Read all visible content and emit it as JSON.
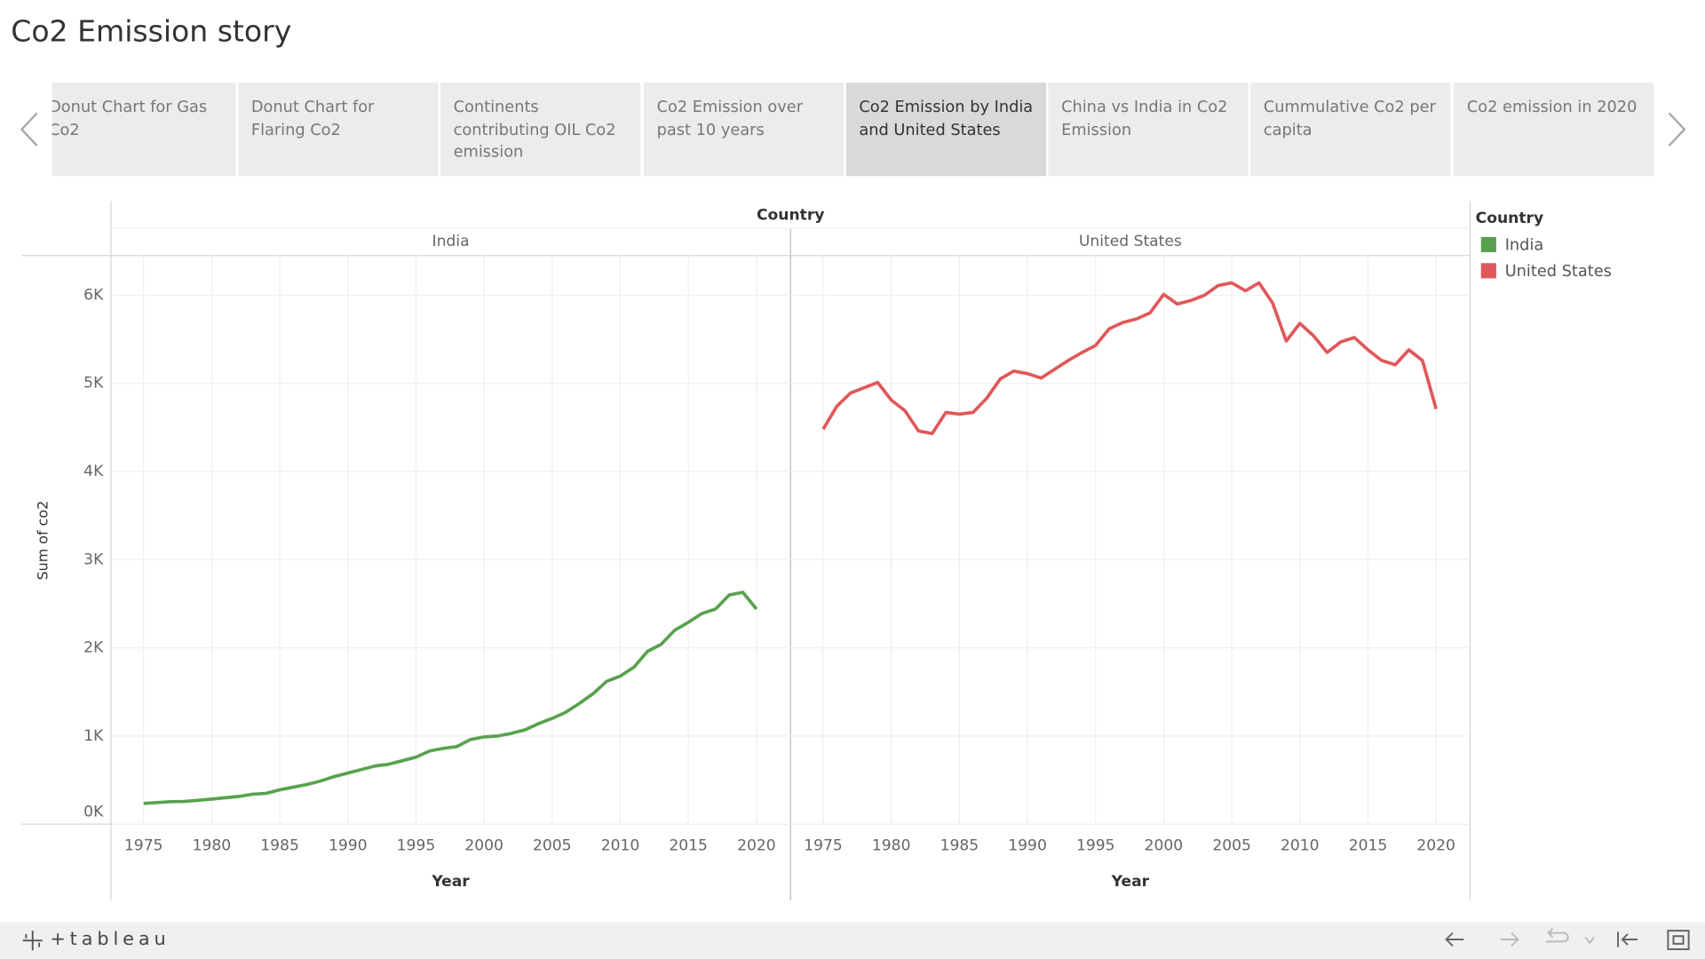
{
  "header": {
    "title": "Co2 Emission story"
  },
  "tabs": [
    "Donut Chart for Gas Co2",
    "Donut Chart for Flaring Co2",
    "Continents contributing OIL Co2 emission",
    "Co2 Emission over past 10 years",
    "Co2 Emission by India and United States",
    "China vs India in Co2 Emission",
    "Cummulative Co2 per capita",
    "Co2 emission in 2020"
  ],
  "chart_data": {
    "type": "line",
    "column_header": "Country",
    "legend_title": "Country",
    "y_label": "Sum of co2",
    "x_label": "Year",
    "x": [
      1975,
      1976,
      1977,
      1978,
      1979,
      1980,
      1981,
      1982,
      1983,
      1984,
      1985,
      1986,
      1987,
      1988,
      1989,
      1990,
      1991,
      1992,
      1993,
      1994,
      1995,
      1996,
      1997,
      1998,
      1999,
      2000,
      2001,
      2002,
      2003,
      2004,
      2005,
      2006,
      2007,
      2008,
      2009,
      2010,
      2011,
      2012,
      2013,
      2014,
      2015,
      2016,
      2017,
      2018,
      2019,
      2020
    ],
    "xlim": [
      1972.6,
      2022.5
    ],
    "xticks": [
      1975,
      1980,
      1985,
      1990,
      1995,
      2000,
      2005,
      2010,
      2015,
      2020
    ],
    "ylim": [
      0,
      6450
    ],
    "yticks": [
      {
        "value": 0,
        "label": "0K"
      },
      {
        "value": 1000,
        "label": "1K"
      },
      {
        "value": 2000,
        "label": "2K"
      },
      {
        "value": 3000,
        "label": "3K"
      },
      {
        "value": 4000,
        "label": "4K"
      },
      {
        "value": 5000,
        "label": "5K"
      },
      {
        "value": 6000,
        "label": "6K"
      }
    ],
    "grid": true,
    "series": [
      {
        "name": "India",
        "color": "#59a14f",
        "values": [
          235,
          245,
          255,
          258,
          270,
          285,
          300,
          315,
          340,
          350,
          390,
          420,
          450,
          490,
          540,
          580,
          620,
          660,
          680,
          720,
          760,
          830,
          860,
          880,
          960,
          990,
          1000,
          1030,
          1070,
          1140,
          1200,
          1270,
          1370,
          1480,
          1620,
          1680,
          1780,
          1960,
          2040,
          2200,
          2290,
          2390,
          2440,
          2600,
          2630,
          2440
        ]
      },
      {
        "name": "United States",
        "color": "#e15759",
        "values": [
          4480,
          4740,
          4890,
          4950,
          5010,
          4810,
          4690,
          4460,
          4430,
          4670,
          4650,
          4670,
          4830,
          5050,
          5140,
          5110,
          5060,
          5160,
          5260,
          5350,
          5430,
          5620,
          5690,
          5730,
          5800,
          6010,
          5900,
          5940,
          6000,
          6110,
          6140,
          6050,
          6140,
          5910,
          5480,
          5680,
          5540,
          5350,
          5470,
          5520,
          5380,
          5260,
          5210,
          5380,
          5260,
          4710
        ]
      }
    ]
  },
  "footer": {
    "logo": "+tableau"
  }
}
